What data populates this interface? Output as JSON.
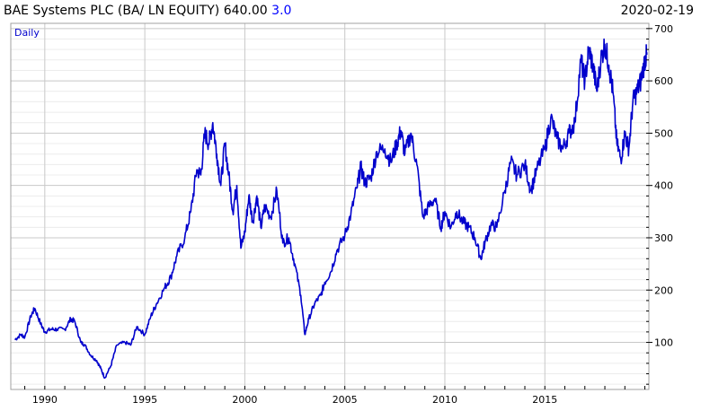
{
  "header": {
    "title": "BAE Systems PLC (BA/ LN EQUITY)",
    "last_price": "640.00",
    "change": "3.0",
    "date": "2020-02-19"
  },
  "chart_data": {
    "type": "line",
    "frequency_label": "Daily",
    "x_tick_labels": [
      "1990",
      "1995",
      "2000",
      "2005",
      "2010",
      "2015"
    ],
    "y_tick_labels": [
      "100",
      "200",
      "300",
      "400",
      "500",
      "600",
      "700"
    ],
    "xlim": [
      1988.3,
      2020.2
    ],
    "ylim": [
      10,
      710
    ],
    "grid": true,
    "line_color": "#0000cc",
    "series": [
      {
        "x": [
          1988.5,
          1988.8,
          1989.0,
          1989.3,
          1989.5,
          1989.8,
          1990.0,
          1990.3,
          1990.6,
          1991.0,
          1991.3,
          1991.5,
          1991.8,
          1992.0,
          1992.3,
          1992.6,
          1992.8,
          1993.0,
          1993.3,
          1993.6,
          1994.0,
          1994.3,
          1994.6,
          1995.0,
          1995.3,
          1995.6,
          1996.0,
          1996.3,
          1996.6,
          1997.0,
          1997.3,
          1997.6,
          1997.8,
          1998.0,
          1998.2,
          1998.4,
          1998.6,
          1998.8,
          1999.0,
          1999.2,
          1999.4,
          1999.6,
          1999.8,
          2000.0,
          2000.2,
          2000.4,
          2000.6,
          2000.8,
          2001.0,
          2001.3,
          2001.6,
          2001.9,
          2002.2,
          2002.5,
          2002.8,
          2003.0,
          2003.2,
          2003.5,
          2003.8,
          2004.0,
          2004.3,
          2004.6,
          2005.0,
          2005.3,
          2005.6,
          2005.8,
          2006.0,
          2006.3,
          2006.6,
          2007.0,
          2007.3,
          2007.6,
          2007.8,
          2008.0,
          2008.3,
          2008.6,
          2008.9,
          2009.2,
          2009.5,
          2009.8,
          2010.0,
          2010.3,
          2010.6,
          2010.9,
          2011.2,
          2011.5,
          2011.8,
          2012.0,
          2012.3,
          2012.6,
          2013.0,
          2013.3,
          2013.6,
          2014.0,
          2014.3,
          2014.6,
          2015.0,
          2015.3,
          2015.6,
          2015.9,
          2016.2,
          2016.5,
          2016.8,
          2017.0,
          2017.2,
          2017.4,
          2017.6,
          2017.8,
          2018.0,
          2018.2,
          2018.4,
          2018.6,
          2018.8,
          2019.0,
          2019.2,
          2019.4,
          2019.6,
          2019.8,
          2020.0,
          2020.1
        ],
        "y": [
          105,
          115,
          110,
          150,
          165,
          135,
          120,
          125,
          125,
          125,
          145,
          140,
          100,
          95,
          75,
          65,
          50,
          32,
          55,
          95,
          100,
          95,
          130,
          115,
          150,
          175,
          205,
          225,
          265,
          300,
          350,
          430,
          420,
          500,
          480,
          520,
          460,
          400,
          480,
          420,
          350,
          400,
          280,
          310,
          380,
          330,
          380,
          320,
          360,
          340,
          390,
          290,
          300,
          250,
          190,
          115,
          145,
          175,
          190,
          215,
          235,
          275,
          305,
          345,
          395,
          435,
          405,
          415,
          465,
          470,
          445,
          480,
          505,
          460,
          500,
          440,
          340,
          360,
          375,
          320,
          350,
          320,
          350,
          330,
          320,
          300,
          260,
          290,
          325,
          320,
          390,
          445,
          420,
          440,
          390,
          430,
          470,
          530,
          490,
          470,
          500,
          520,
          640,
          600,
          660,
          630,
          580,
          640,
          670,
          630,
          580,
          480,
          450,
          500,
          470,
          560,
          580,
          600,
          640,
          650
        ]
      }
    ]
  }
}
